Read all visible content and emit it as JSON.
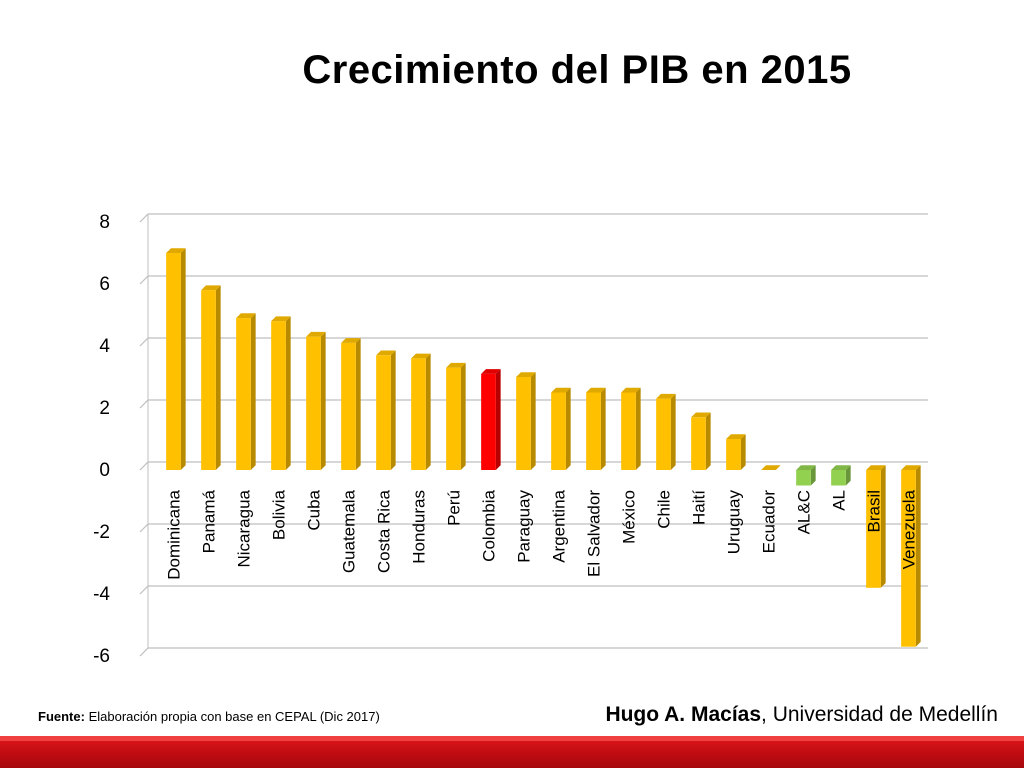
{
  "slide": {
    "title": "Crecimiento del PIB en 2015",
    "source_label": "Fuente:",
    "source_text": "Elaboración propia con base en CEPAL (Dic 2017)",
    "author_name": "Hugo A. Macías",
    "author_affiliation": ", Universidad de Medellín"
  },
  "colors": {
    "default_bar": "#ffc000",
    "highlight_bar": "#ff0000",
    "aggregate_bar": "#92d050",
    "gridline": "#bfbfbf",
    "footer": "#c00000"
  },
  "chart_data": {
    "type": "bar",
    "title": "",
    "xlabel": "",
    "ylabel": "",
    "ylim": [
      -6,
      8
    ],
    "yticks": [
      8,
      6,
      4,
      2,
      0,
      -2,
      -4,
      -6
    ],
    "grid": true,
    "style": "3d-column",
    "categories": [
      "Dominicana",
      "Panamá",
      "Nicaragua",
      "Bolivia",
      "Cuba",
      "Guatemala",
      "Costa Rica",
      "Honduras",
      "Perú",
      "Colombia",
      "Paraguay",
      "Argentina",
      "El Salvador",
      "México",
      "Chile",
      "Haití",
      "Uruguay",
      "Ecuador",
      "AL&C",
      "AL",
      "Brasil",
      "Venezuela"
    ],
    "values": [
      7.0,
      5.8,
      4.9,
      4.8,
      4.3,
      4.1,
      3.7,
      3.6,
      3.3,
      3.1,
      3.0,
      2.5,
      2.5,
      2.5,
      2.3,
      1.7,
      1.0,
      0.0,
      -0.5,
      -0.5,
      -3.8,
      -5.7
    ],
    "bar_colors": [
      "#ffc000",
      "#ffc000",
      "#ffc000",
      "#ffc000",
      "#ffc000",
      "#ffc000",
      "#ffc000",
      "#ffc000",
      "#ffc000",
      "#ff0000",
      "#ffc000",
      "#ffc000",
      "#ffc000",
      "#ffc000",
      "#ffc000",
      "#ffc000",
      "#ffc000",
      "#ffc000",
      "#92d050",
      "#92d050",
      "#ffc000",
      "#ffc000"
    ]
  }
}
